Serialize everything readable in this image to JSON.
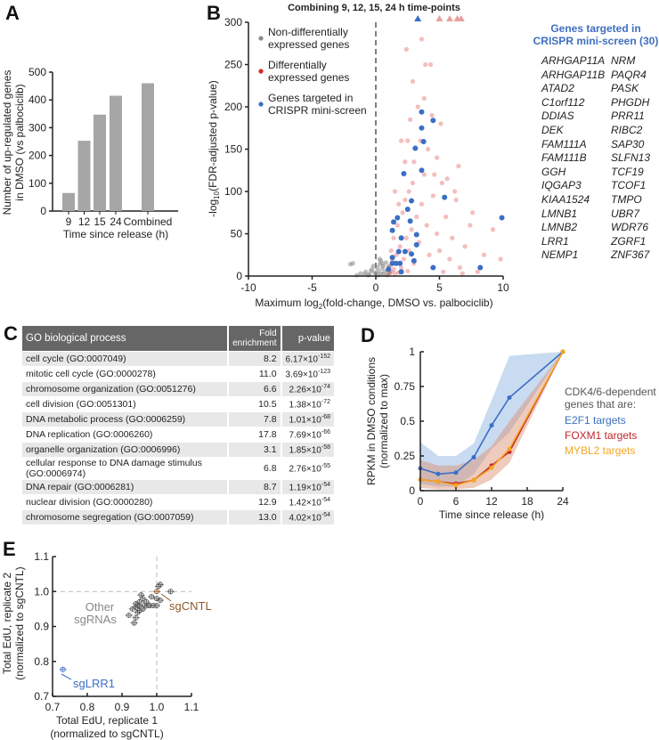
{
  "panel_labels": [
    "A",
    "B",
    "C",
    "D",
    "E"
  ],
  "chart_data": [
    {
      "id": "A",
      "type": "bar",
      "categories": [
        "9",
        "12",
        "15",
        "24",
        "Combined"
      ],
      "values": [
        65,
        253,
        347,
        415,
        460
      ],
      "xlabel": "Time since release (h)",
      "ylabel_lines": [
        "Number of up-regulated genes",
        "in DMSO (vs palbociclib)"
      ],
      "ylim": [
        0,
        500
      ],
      "yticks": [
        "0",
        "100",
        "200",
        "300",
        "400",
        "500"
      ],
      "bar_color": "#a6a6a6"
    },
    {
      "id": "B",
      "type": "scatter",
      "title": "Combining 9, 12, 15, 24 h time-points",
      "xlabel": "Maximum log2(fold-change, DMSO vs. palbociclib)",
      "ylabel": "-log10(FDR-adjusted p-value)",
      "xlim": [
        -10,
        10
      ],
      "ylim": [
        0,
        300
      ],
      "xticks": [
        "-10",
        "-5",
        "0",
        "5",
        "10"
      ],
      "yticks": [
        "0",
        "50",
        "100",
        "150",
        "200",
        "250",
        "300"
      ],
      "vline_x": 0,
      "legend": [
        {
          "lines": [
            "Non-differentially",
            "expressed genes"
          ],
          "color": "#8c8c8c"
        },
        {
          "lines": [
            "Differentially",
            "expressed genes"
          ],
          "color": "#d62728"
        },
        {
          "lines": [
            "Genes targeted in",
            "CRISPR mini-screen"
          ],
          "color": "#3a6fc4"
        }
      ],
      "legend_placement": "top-left",
      "series": [
        {
          "name": "Non-differentially expressed genes",
          "color": "#8c8c8c",
          "points": [
            [
              -1.2,
              3
            ],
            [
              -0.8,
              5
            ],
            [
              -0.5,
              2
            ],
            [
              -0.3,
              8
            ],
            [
              -0.1,
              4
            ],
            [
              0.1,
              10
            ],
            [
              0.2,
              6
            ],
            [
              0.3,
              14
            ],
            [
              0.4,
              3
            ],
            [
              0.5,
              9
            ],
            [
              0.6,
              12
            ],
            [
              0.7,
              5
            ],
            [
              0.8,
              16
            ],
            [
              0.9,
              7
            ],
            [
              1.0,
              11
            ],
            [
              -0.6,
              1
            ],
            [
              -0.9,
              2
            ],
            [
              -1.5,
              1
            ],
            [
              -2.0,
              14
            ],
            [
              -1.8,
              15
            ],
            [
              0.2,
              1
            ],
            [
              0.4,
              18
            ],
            [
              0.6,
              2
            ],
            [
              0.3,
              20
            ],
            [
              -0.2,
              12
            ],
            [
              0.9,
              1
            ],
            [
              1.1,
              4
            ],
            [
              -0.4,
              6
            ],
            [
              0.0,
              3
            ],
            [
              0.5,
              15
            ]
          ]
        },
        {
          "name": "Differentially expressed genes",
          "color": "#d62728",
          "points": [
            [
              1.0,
              2
            ],
            [
              1.2,
              5
            ],
            [
              1.4,
              8
            ],
            [
              1.1,
              12
            ],
            [
              1.5,
              3
            ],
            [
              1.3,
              18
            ],
            [
              1.8,
              4
            ],
            [
              2.0,
              10
            ],
            [
              1.6,
              25
            ],
            [
              1.9,
              35
            ],
            [
              2.2,
              20
            ],
            [
              2.5,
              6
            ],
            [
              2.4,
              45
            ],
            [
              2.6,
              30
            ],
            [
              2.8,
              55
            ],
            [
              3.0,
              15
            ],
            [
              1.7,
              60
            ],
            [
              2.1,
              75
            ],
            [
              2.3,
              90
            ],
            [
              2.6,
              100
            ],
            [
              2.9,
              110
            ],
            [
              3.2,
              70
            ],
            [
              3.4,
              40
            ],
            [
              3.6,
              85
            ],
            [
              3.8,
              120
            ],
            [
              4.0,
              60
            ],
            [
              4.2,
              25
            ],
            [
              4.5,
              95
            ],
            [
              4.8,
              50
            ],
            [
              5.0,
              30
            ],
            [
              5.2,
              110
            ],
            [
              5.5,
              70
            ],
            [
              5.8,
              20
            ],
            [
              6.0,
              45
            ],
            [
              6.3,
              90
            ],
            [
              6.6,
              10
            ],
            [
              7.0,
              35
            ],
            [
              7.4,
              60
            ],
            [
              8.0,
              5
            ],
            [
              8.5,
              25
            ],
            [
              9.8,
              20
            ],
            [
              9.2,
              55
            ],
            [
              3.0,
              135
            ],
            [
              3.5,
              160
            ],
            [
              4.1,
              150
            ],
            [
              2.7,
              185
            ],
            [
              3.8,
              210
            ],
            [
              4.4,
              190
            ],
            [
              5.1,
              180
            ],
            [
              2.9,
              230
            ],
            [
              3.9,
              250
            ],
            [
              4.3,
              250
            ],
            [
              2.4,
              268
            ],
            [
              3.6,
              280
            ],
            [
              2.0,
              160
            ],
            [
              2.3,
              135
            ],
            [
              4.8,
              140
            ],
            [
              5.6,
              115
            ],
            [
              6.5,
              130
            ],
            [
              1.5,
              100
            ],
            [
              1.8,
              85
            ],
            [
              2.5,
              160
            ],
            [
              3.3,
              200
            ],
            [
              4.6,
              120
            ],
            [
              6.2,
              100
            ],
            [
              7.6,
              75
            ],
            [
              5.3,
              5
            ],
            [
              6.8,
              3
            ],
            [
              1.4,
              45
            ],
            [
              1.2,
              30
            ]
          ]
        },
        {
          "name": "Genes targeted in CRISPR mini-screen",
          "color": "#3a6fc4",
          "points": [
            [
              3.6,
              194
            ],
            [
              4.5,
              184
            ],
            [
              3.6,
              175
            ],
            [
              3.75,
              159
            ],
            [
              3.1,
              151
            ],
            [
              2.2,
              121
            ],
            [
              3.6,
              125
            ],
            [
              5.4,
              93
            ],
            [
              2.8,
              89
            ],
            [
              2.5,
              79
            ],
            [
              1.7,
              69
            ],
            [
              1.4,
              64
            ],
            [
              2.7,
              65
            ],
            [
              9.9,
              69
            ],
            [
              1.3,
              54
            ],
            [
              2.0,
              45
            ],
            [
              3.2,
              49
            ],
            [
              3.2,
              37
            ],
            [
              1.8,
              29
            ],
            [
              2.3,
              29
            ],
            [
              2.8,
              26
            ],
            [
              1.3,
              22
            ],
            [
              1.3,
              15
            ],
            [
              1.6,
              15
            ],
            [
              1.9,
              15
            ],
            [
              1.0,
              8
            ],
            [
              2.0,
              5
            ],
            [
              4.5,
              10
            ],
            [
              8.2,
              10
            ],
            [
              3.0,
              18
            ]
          ]
        }
      ],
      "offscale_markers": [
        {
          "x": 3.3,
          "color": "#3a6fc4"
        },
        {
          "x": 5.0,
          "color": "#e8a0a0"
        },
        {
          "x": 5.8,
          "color": "#e8a0a0"
        },
        {
          "x": 6.4,
          "color": "#e8a0a0"
        },
        {
          "x": 6.7,
          "color": "#e8a0a0"
        }
      ]
    },
    {
      "id": "D",
      "type": "line",
      "xlabel": "Time since release (h)",
      "ylabel_lines": [
        "RPKM in DMSO conditions",
        "(normalized to max)"
      ],
      "xlim": [
        0,
        24
      ],
      "ylim": [
        0,
        1
      ],
      "xticks": [
        "0",
        "6",
        "12",
        "18",
        "24"
      ],
      "yticks": [
        "0",
        "0.25",
        "0.5",
        "0.75",
        "1"
      ],
      "x": [
        0,
        3,
        6,
        9,
        12,
        15,
        24
      ],
      "legend_title_lines": [
        "CDK4/6-dependent",
        "genes that are:"
      ],
      "legend_placement": "right",
      "series": [
        {
          "name": "E2F1 targets",
          "color": "#3a6fc4",
          "values": [
            0.16,
            0.12,
            0.13,
            0.24,
            0.47,
            0.67,
            1.0
          ],
          "band_upper": [
            0.35,
            0.25,
            0.25,
            0.34,
            0.65,
            0.97,
            1.0
          ],
          "band_lower": [
            0.05,
            0.03,
            0.03,
            0.12,
            0.3,
            0.42,
            1.0
          ]
        },
        {
          "name": "FOXM1 targets",
          "color": "#c0272d",
          "values": [
            0.08,
            0.065,
            0.05,
            0.075,
            0.18,
            0.28,
            1.0
          ],
          "band_upper": [
            0.22,
            0.18,
            0.18,
            0.22,
            0.32,
            0.5,
            1.0
          ],
          "band_lower": [
            0.02,
            0.01,
            0.01,
            0.02,
            0.08,
            0.2,
            1.0
          ]
        },
        {
          "name": "MYBL2 targets",
          "color": "#f5a623",
          "values": [
            0.08,
            0.065,
            0.04,
            0.075,
            0.165,
            0.3,
            1.0
          ],
          "band_upper": [
            0.2,
            0.16,
            0.16,
            0.2,
            0.3,
            0.48,
            1.0
          ],
          "band_lower": [
            0.03,
            0.01,
            0.01,
            0.03,
            0.09,
            0.2,
            1.0
          ]
        }
      ]
    },
    {
      "id": "E",
      "type": "scatter",
      "xlabel_lines": [
        "Total EdU, replicate 1",
        "(normalized to sgCNTL)"
      ],
      "ylabel_lines": [
        "Total EdU, replicate 2",
        "(normalized to sgCNTL)"
      ],
      "xlim": [
        0.7,
        1.1
      ],
      "ylim": [
        0.7,
        1.1
      ],
      "xticks": [
        "0.7",
        "0.8",
        "0.9",
        "1.0",
        "1.1"
      ],
      "yticks": [
        "0.7",
        "0.8",
        "0.9",
        "1.0",
        "1.1"
      ],
      "ref_lines": {
        "x": 1.0,
        "y": 1.0
      },
      "series": [
        {
          "name": "Other sgRNAs",
          "label_lines": [
            "Other",
            "sgRNAs"
          ],
          "color": "#555555",
          "points": [
            [
              0.92,
              0.932
            ],
            [
              0.935,
              0.91
            ],
            [
              0.94,
              0.925
            ],
            [
              0.93,
              0.95
            ],
            [
              0.94,
              0.955
            ],
            [
              0.945,
              0.96
            ],
            [
              0.95,
              0.97
            ],
            [
              0.955,
              0.99
            ],
            [
              0.96,
              0.98
            ],
            [
              0.945,
              0.94
            ],
            [
              0.95,
              0.945
            ],
            [
              0.96,
              0.95
            ],
            [
              0.965,
              0.96
            ],
            [
              0.97,
              0.97
            ],
            [
              0.975,
              0.96
            ],
            [
              0.98,
              0.96
            ],
            [
              0.99,
              0.96
            ],
            [
              1.0,
              0.96
            ],
            [
              1.0,
              0.98
            ],
            [
              1.01,
              0.975
            ],
            [
              1.005,
              1.015
            ],
            [
              1.01,
              1.02
            ],
            [
              1.04,
              1.0
            ],
            [
              0.94,
              0.965
            ],
            [
              0.95,
              0.96
            ],
            [
              0.985,
              0.985
            ]
          ]
        },
        {
          "name": "sgCNTL",
          "color": "#8b5a2b",
          "points": [
            [
              1.0,
              1.0
            ]
          ]
        },
        {
          "name": "sgLRR1",
          "color": "#3a6fc4",
          "points": [
            [
              0.73,
              0.777
            ]
          ]
        }
      ]
    }
  ],
  "genes_panel": {
    "title_lines": [
      "Genes targeted in",
      "CRISPR mini-screen (30)"
    ],
    "col1": [
      "ARHGAP11A",
      "ARHGAP11B",
      "ATAD2",
      "C1orf112",
      "DDIAS",
      "DEK",
      "FAM111A",
      "FAM111B",
      "GGH",
      "IQGAP3",
      "KIAA1524",
      "LMNB1",
      "LMNB2",
      "LRR1",
      "NEMP1"
    ],
    "col2": [
      "NRM",
      "PAQR4",
      "PASK",
      "PHGDH",
      "PRR11",
      "RIBC2",
      "SAP30",
      "SLFN13",
      "TCF19",
      "TCOF1",
      "TMPO",
      "UBR7",
      "WDR76",
      "ZGRF1",
      "ZNF367"
    ]
  },
  "go_table": {
    "headers": [
      "GO biological process",
      "Fold enrichment",
      "p-value"
    ],
    "rows": [
      {
        "process": "cell cycle (GO:0007049)",
        "fold": "8.2",
        "p_mant": "6.17",
        "p_exp": "-152"
      },
      {
        "process": "mitotic cell cycle (GO:0000278)",
        "fold": "11.0",
        "p_mant": "3.69",
        "p_exp": "-123"
      },
      {
        "process": "chromosome organization (GO:0051276)",
        "fold": "6.6",
        "p_mant": "2.26",
        "p_exp": "-74"
      },
      {
        "process": "cell division (GO:0051301)",
        "fold": "10.5",
        "p_mant": "1.38",
        "p_exp": "-72"
      },
      {
        "process": "DNA metabolic process (GO:0006259)",
        "fold": "7.8",
        "p_mant": "1.01",
        "p_exp": "-68"
      },
      {
        "process": "DNA replication (GO:0006260)",
        "fold": "17.8",
        "p_mant": "7.69",
        "p_exp": "-66"
      },
      {
        "process": "organelle organization (GO:0006996)",
        "fold": "3.1",
        "p_mant": "1.85",
        "p_exp": "-58"
      },
      {
        "process": "cellular response to DNA damage stimulus (GO:0006974)",
        "fold": "6.8",
        "p_mant": "2.76",
        "p_exp": "-55"
      },
      {
        "process": "DNA repair (GO:0006281)",
        "fold": "8.7",
        "p_mant": "1.19",
        "p_exp": "-54"
      },
      {
        "process": "nuclear division (GO:0000280)",
        "fold": "12.9",
        "p_mant": "1.42",
        "p_exp": "-54"
      },
      {
        "process": "chromosome segregation (GO:0007059)",
        "fold": "13.0",
        "p_mant": "4.02",
        "p_exp": "-54"
      }
    ]
  }
}
